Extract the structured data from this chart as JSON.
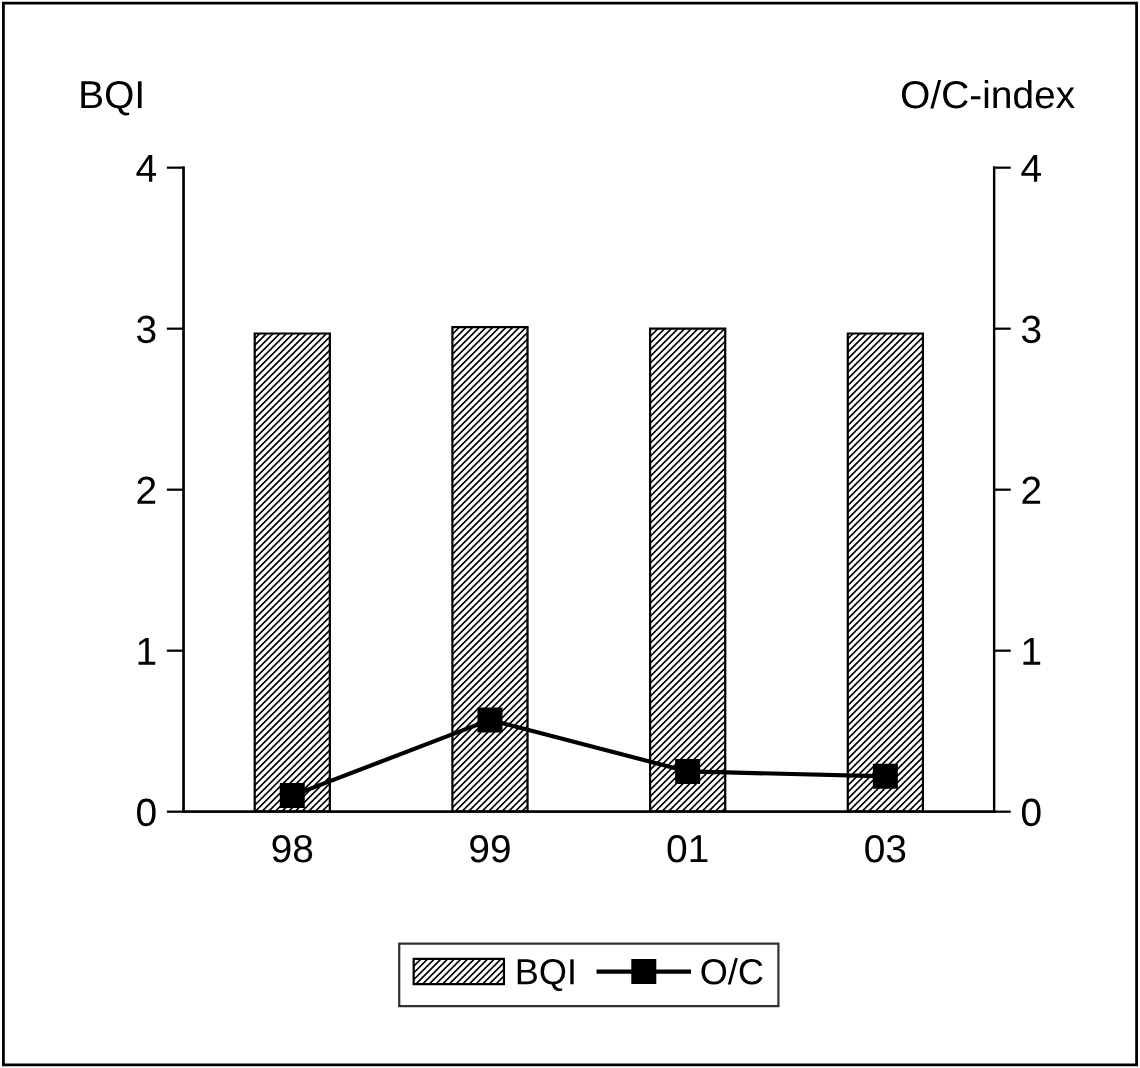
{
  "chart_data": {
    "type": "bar",
    "ylabel": "BQI",
    "y2label": "O/C-index",
    "categories": [
      "98",
      "99",
      "01",
      "03"
    ],
    "series": [
      {
        "name": "BQI",
        "color": "#000000",
        "values": [
          2.97,
          3.01,
          3.0,
          2.97
        ]
      },
      {
        "name": "O/C",
        "type": "line",
        "axis": "y2",
        "color": "#000000",
        "marker": "square",
        "values": [
          0.1,
          0.57,
          0.25,
          0.22
        ]
      }
    ],
    "ylim": [
      0,
      4
    ],
    "yticks": [
      0,
      1,
      2,
      3,
      4
    ],
    "y2lim": [
      0,
      4
    ],
    "y2ticks": [
      0,
      1,
      2,
      3,
      4
    ],
    "grid": false,
    "legend": "bottom"
  }
}
